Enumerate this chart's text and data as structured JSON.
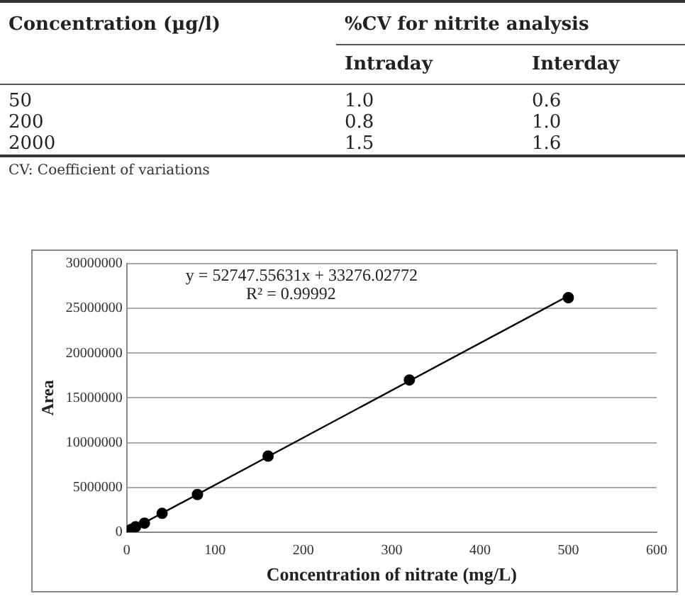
{
  "chart_data": [
    {
      "type": "other",
      "xlabel": "Concentration (µg/l)",
      "title": "%CV for nitrite analysis",
      "categories": [
        "Intraday",
        "Interday"
      ],
      "y_categories": [
        "50",
        "200",
        "2000"
      ],
      "cell_labels": [
        [
          "1.0",
          "0.6"
        ],
        [
          "0.8",
          "1.0"
        ],
        [
          "1.5",
          "1.6"
        ]
      ],
      "annotations": [
        "CV: Coefficient of variations"
      ]
    },
    {
      "type": "scatter",
      "xlabel": "Concentration of nitrate (mg/L)",
      "ylabel": "Area",
      "xlim": [
        0,
        600
      ],
      "xticks": [
        0,
        100,
        200,
        300,
        400,
        500,
        600
      ],
      "ylim": [
        0,
        30000000
      ],
      "yticks": [
        0,
        5000000,
        10000000,
        15000000,
        20000000,
        25000000,
        30000000
      ],
      "grid": "y",
      "legend": false,
      "marker": "circle",
      "annotations": [
        "y = 52747.55631x + 33276.02772",
        "R² = 0.99992"
      ],
      "series": [
        {
          "type": "scatter",
          "color": "#000000",
          "x": [
            5,
            10,
            20,
            40,
            80,
            160,
            320,
            500
          ],
          "values": [
            300000,
            600000,
            1000000,
            2100000,
            4200000,
            8500000,
            17000000,
            26200000
          ]
        },
        {
          "type": "line",
          "color": "#000000",
          "marker": "none",
          "x": [
            0,
            500
          ],
          "values": [
            0,
            26400000
          ]
        }
      ]
    }
  ]
}
